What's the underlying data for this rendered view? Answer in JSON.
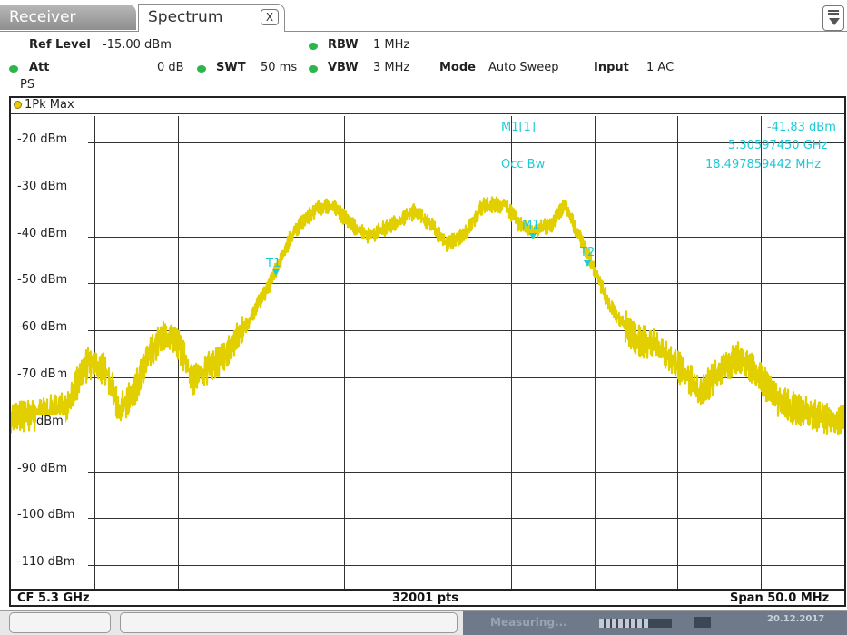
{
  "tabs": {
    "receiver": "Receiver",
    "spectrum": "Spectrum",
    "close": "X"
  },
  "settings": {
    "ref_level_label": "Ref Level",
    "ref_level_value": "-15.00 dBm",
    "att_label": "Att",
    "att_value": "0 dB",
    "swt_label": "SWT",
    "swt_value": "50 ms",
    "rbw_label": "RBW",
    "rbw_value": "1 MHz",
    "vbw_label": "VBW",
    "vbw_value": "3 MHz",
    "mode_label": "Mode",
    "mode_value": "Auto Sweep",
    "input_label": "Input",
    "input_value": "1 AC",
    "ps": "PS"
  },
  "trace": {
    "label": "1Pk Max",
    "color": "#e2cf00"
  },
  "y_axis": [
    "-20 dBm",
    "-30 dBm",
    "-40 dBm",
    "-50 dBm",
    "-60 dBm",
    "-70 dBm",
    "dBm",
    "-90 dBm",
    "-100 dBm",
    "-110 dBm"
  ],
  "y_axis_partial": "-70 dB",
  "markers": {
    "m1_label": "M1[1]",
    "m1_level": "-41.83 dBm",
    "m1_freq": "5.30597450 GHz",
    "occ_bw_label": "Occ Bw",
    "occ_bw_value": "18.497859442 MHz",
    "m1_tag": "M1",
    "t1_tag": "T1",
    "t2_tag": "T2"
  },
  "footer": {
    "cf": "CF 5.3 GHz",
    "pts": "32001 pts",
    "span": "Span 50.0 MHz"
  },
  "status": {
    "measuring": "Measuring...",
    "date": "20.12.2017",
    "progress_fraction": 0.7
  },
  "colors": {
    "grid": "#333333",
    "marker": "#1ec9d8",
    "status_dot": "#2bb54a"
  }
}
